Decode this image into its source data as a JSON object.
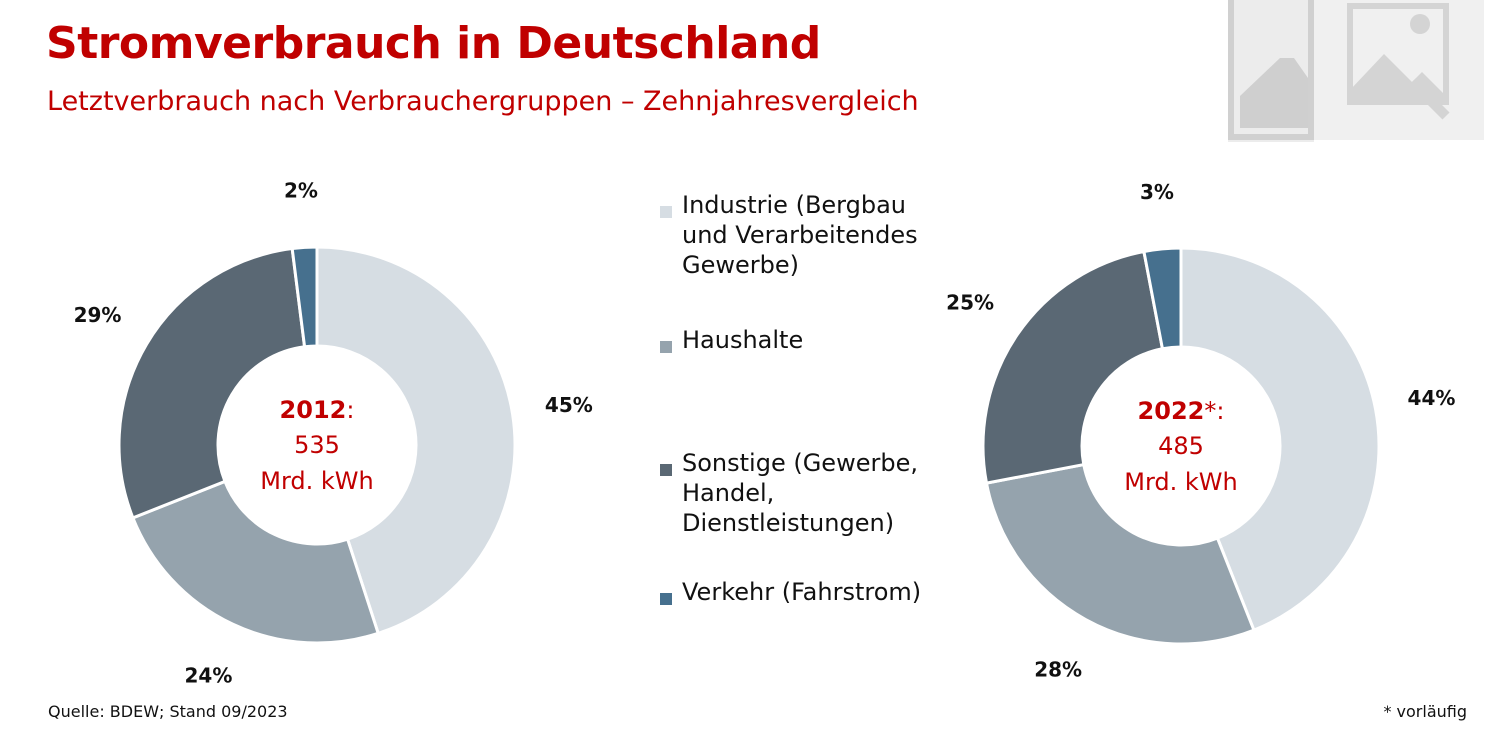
{
  "title": "Stromverbrauch in Deutschland",
  "subtitle": "Letztverbrauch nach Verbrauchergruppen – Zehnjahresvergleich",
  "colors": {
    "accent": "#c00000",
    "Industrie": "#d6dde3",
    "Haushalte": "#95a3ad",
    "Sonstige": "#5a6874",
    "Verkehr": "#46708e"
  },
  "legend": [
    {
      "key": "Industrie",
      "label": "Industrie (Bergbau und Verarbeitendes Gewerbe)"
    },
    {
      "key": "Haushalte",
      "label": "Haushalte"
    },
    {
      "key": "Sonstige",
      "label": "Sonstige (Gewerbe, Handel, Dienstleistungen)"
    },
    {
      "key": "Verkehr",
      "label": "Verkehr (Fahrstrom)"
    }
  ],
  "chart_data": [
    {
      "type": "pie",
      "center_year": "2012",
      "center_year_suffix": ":",
      "center_value": "535",
      "center_unit": "Mrd. kWh",
      "categories": [
        "Industrie",
        "Haushalte",
        "Sonstige",
        "Verkehr"
      ],
      "values": [
        45,
        24,
        29,
        2
      ],
      "labels": [
        "45%",
        "24%",
        "29%",
        "2%"
      ]
    },
    {
      "type": "pie",
      "center_year": "2022",
      "center_year_suffix": "*:",
      "center_value": "485",
      "center_unit": "Mrd. kWh",
      "categories": [
        "Industrie",
        "Haushalte",
        "Sonstige",
        "Verkehr"
      ],
      "values": [
        44,
        28,
        25,
        3
      ],
      "labels": [
        "44%",
        "28%",
        "25%",
        "3%"
      ]
    }
  ],
  "source": "Quelle: BDEW; Stand 09/2023",
  "footnote": "* vorläufig"
}
